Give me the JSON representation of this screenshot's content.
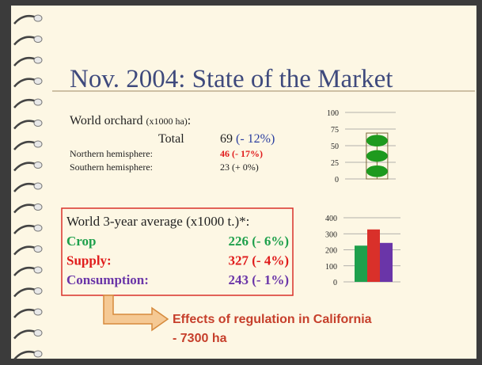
{
  "title": "Nov. 2004: State of the Market",
  "orchard": {
    "heading": "World orchard",
    "unit": "(x1000 ha)",
    "colon": ":",
    "rows": [
      {
        "label": "Total",
        "value": "69",
        "change": "(- 12%)"
      },
      {
        "label": "Northern hemisphere:",
        "value": "46 (- 17%)"
      },
      {
        "label": "Southern hemisphere:",
        "value": "23 (+ 0%)"
      }
    ]
  },
  "average": {
    "heading": "World 3-year average (x1000 t.)*:",
    "rows": [
      {
        "label": "Crop",
        "value": "226 (- 6%)",
        "color": "#1ea04c"
      },
      {
        "label": "Supply:",
        "value": "327 (- 4%)",
        "color": "#e01b1b"
      },
      {
        "label": "Consumption:",
        "value": "243 (- 1%)",
        "color": "#6a35a8"
      }
    ]
  },
  "note": {
    "lines": [
      "Effects of regulation in California",
      "- 7300 ha"
    ]
  },
  "chart_data": [
    {
      "type": "pictogram",
      "categories": [
        null
      ],
      "values": [
        69
      ],
      "color": "#1e9a1e",
      "ylim": [
        0,
        100
      ],
      "yticks": [
        0,
        25,
        50,
        75,
        100
      ],
      "grid": true
    },
    {
      "type": "bar",
      "categories": [
        null,
        null,
        null
      ],
      "values": [
        226,
        327,
        243
      ],
      "colors": [
        "#1ea04c",
        "#d9302a",
        "#6a35a8"
      ],
      "ylim": [
        0,
        400
      ],
      "yticks": [
        0,
        100,
        200,
        300,
        400
      ],
      "grid": true
    }
  ]
}
